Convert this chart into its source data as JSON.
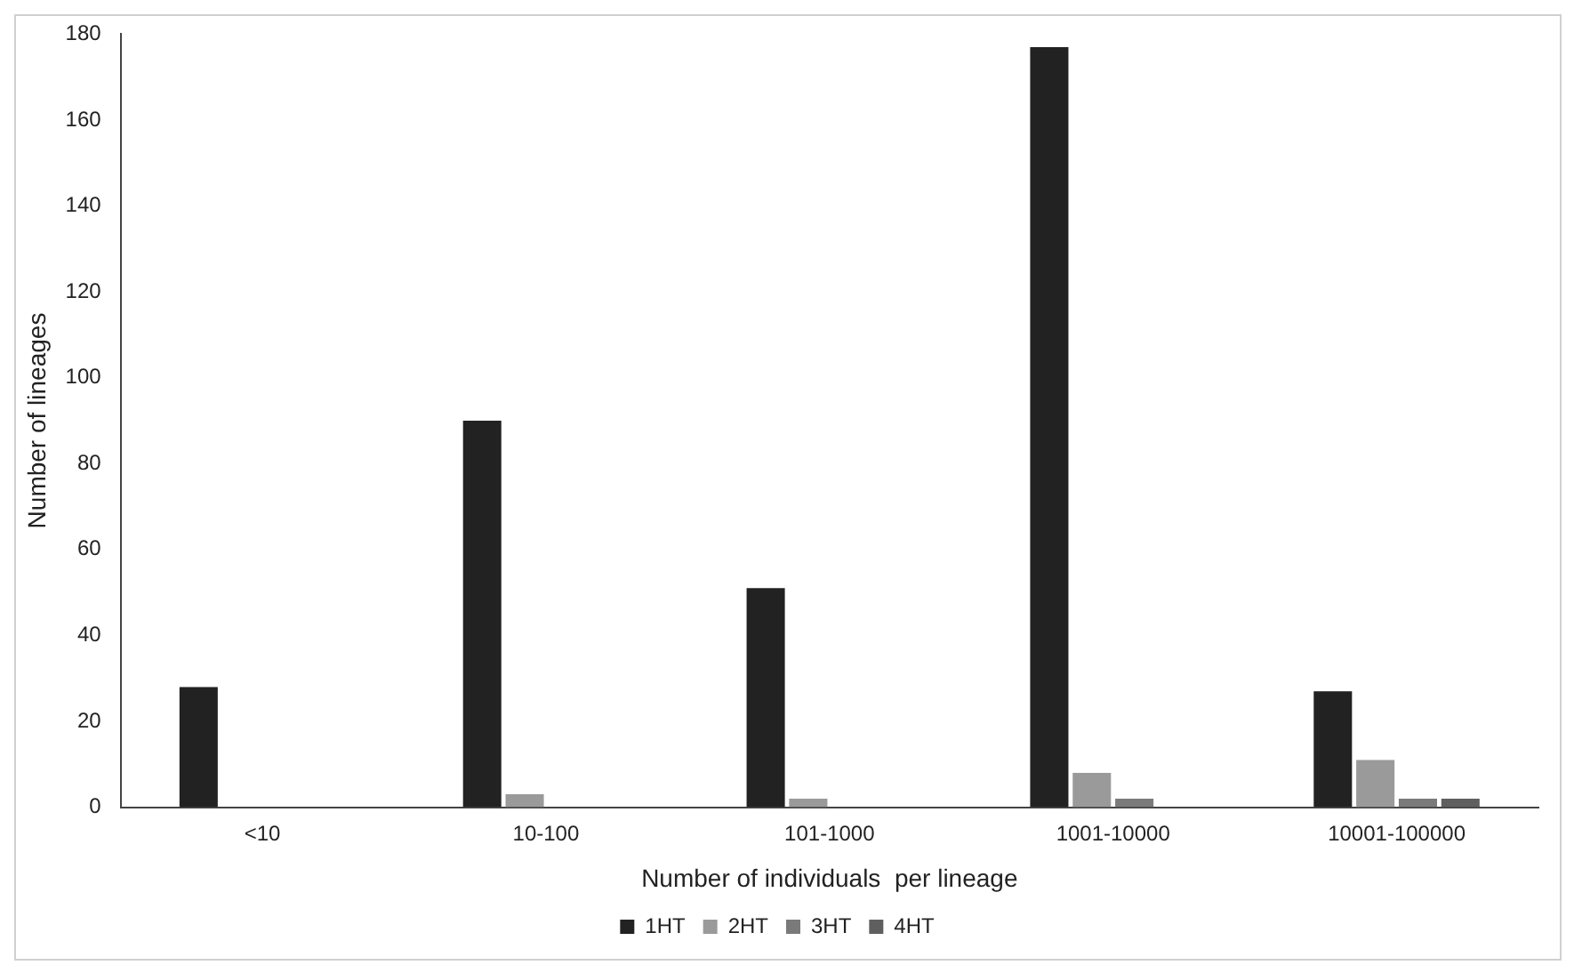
{
  "chart_data": {
    "type": "bar",
    "xlabel": "Number of individuals  per lineage",
    "ylabel": "Number of lineages",
    "categories": [
      "<10",
      "10-100",
      "101-1000",
      "1001-10000",
      "10001-100000"
    ],
    "series": [
      {
        "name": "1HT",
        "color": "#222222",
        "values": [
          28,
          90,
          51,
          177,
          27
        ]
      },
      {
        "name": "2HT",
        "color": "#9a9a9a",
        "values": [
          0,
          3,
          2,
          8,
          11
        ]
      },
      {
        "name": "3HT",
        "color": "#7a7a7a",
        "values": [
          0,
          0,
          0,
          2,
          2
        ]
      },
      {
        "name": "4HT",
        "color": "#5f5f5f",
        "values": [
          0,
          0,
          0,
          0,
          2
        ]
      }
    ],
    "ylim": [
      0,
      180
    ],
    "yticks": [
      0,
      20,
      40,
      60,
      80,
      100,
      120,
      140,
      160,
      180
    ],
    "grid": false,
    "legend": "bottom"
  }
}
